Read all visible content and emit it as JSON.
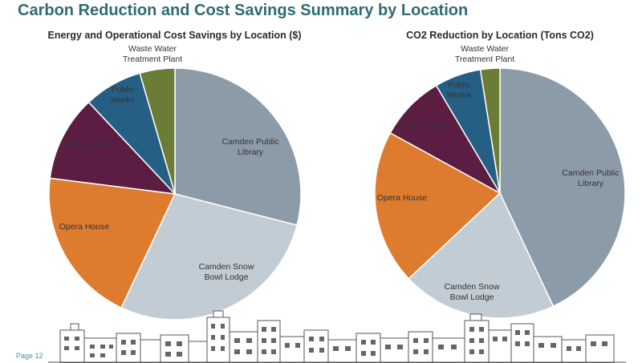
{
  "page": {
    "title": "Carbon Reduction and Cost Savings Summary by Location",
    "page_number": "Page 12"
  },
  "colors": {
    "title": "#2f6b73",
    "library": "#8c9ba8",
    "snow_bowl": "#c1ccd4",
    "opera_house": "#dd7b2e",
    "public_safety": "#5b1d41",
    "public_works": "#255f84",
    "waste_water": "#6a7c36"
  },
  "chart_data": [
    {
      "type": "pie",
      "title": "Energy and Operational Cost Savings by Location ($)",
      "categories": [
        "Camden Public Library",
        "Camden Snow Bowl Lodge",
        "Opera House",
        "Public Safety",
        "Public Works",
        "Waste Water Treatment Plant"
      ],
      "labels": [
        [
          "Camden Public",
          "Library"
        ],
        [
          "Camden Snow",
          "Bowl Lodge"
        ],
        [
          "Opera House"
        ],
        [
          "Public Safety"
        ],
        [
          "Public",
          "Works"
        ],
        [
          "Waste Water",
          "Treatment Plant"
        ]
      ],
      "values": [
        0.29,
        0.28,
        0.2,
        0.11,
        0.075,
        0.045
      ],
      "unit": "$"
    },
    {
      "type": "pie",
      "title": "CO2 Reduction by Location (Tons CO2)",
      "categories": [
        "Camden Public Library",
        "Camden Snow Bowl Lodge",
        "Opera House",
        "Public Safety",
        "Public Works",
        "Waste Water Treatment Plant"
      ],
      "labels": [
        [
          "Camden Public",
          "Library"
        ],
        [
          "Camden Snow",
          "Bowl Lodge"
        ],
        [
          "Opera House"
        ],
        [
          "Public Safety"
        ],
        [
          "Public",
          "Works"
        ],
        [
          "Waste Water",
          "Treatment Plant"
        ]
      ],
      "values": [
        0.43,
        0.2,
        0.2,
        0.085,
        0.06,
        0.025
      ],
      "unit": "Tons CO2"
    }
  ]
}
